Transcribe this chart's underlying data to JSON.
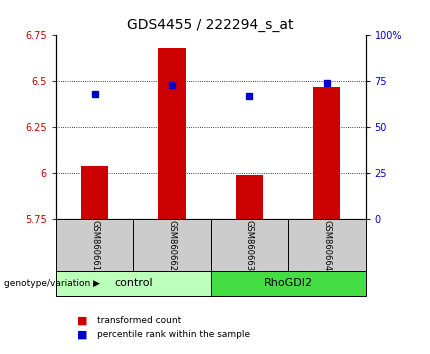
{
  "title": "GDS4455 / 222294_s_at",
  "samples": [
    "GSM860661",
    "GSM860662",
    "GSM860663",
    "GSM860664"
  ],
  "groups": [
    "control",
    "control",
    "RhoGDI2",
    "RhoGDI2"
  ],
  "red_values": [
    6.04,
    6.68,
    5.99,
    6.47
  ],
  "blue_values_pct": [
    68,
    73,
    67,
    74
  ],
  "ylim_left": [
    5.75,
    6.75
  ],
  "ylim_right": [
    0,
    100
  ],
  "yticks_left": [
    5.75,
    6.0,
    6.25,
    6.5,
    6.75
  ],
  "yticks_right": [
    0,
    25,
    50,
    75,
    100
  ],
  "ytick_labels_left": [
    "5.75",
    "6",
    "6.25",
    "6.5",
    "6.75"
  ],
  "ytick_labels_right": [
    "0",
    "25",
    "50",
    "75",
    "100%"
  ],
  "bar_color": "#cc0000",
  "dot_color": "#0000cc",
  "group_colors": {
    "control": "#bbffbb",
    "RhoGDI2": "#44dd44"
  },
  "legend_items": [
    {
      "label": "transformed count",
      "color": "#cc0000"
    },
    {
      "label": "percentile rank within the sample",
      "color": "#0000cc"
    }
  ],
  "bar_width": 0.35,
  "baseline": 5.75,
  "group_label": "genotype/variation",
  "sample_box_color": "#cccccc"
}
